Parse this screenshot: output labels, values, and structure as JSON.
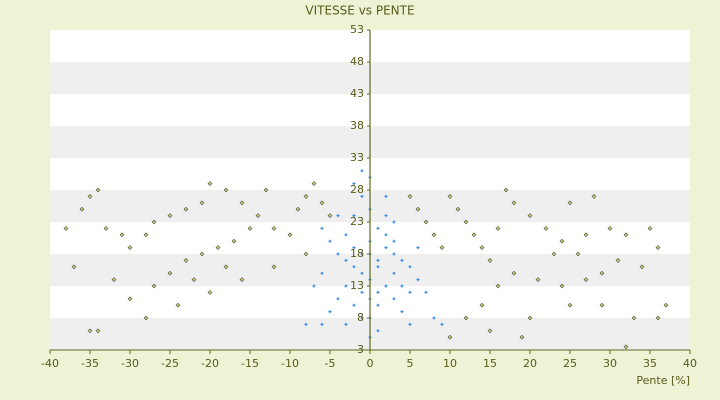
{
  "chart_data": {
    "type": "scatter",
    "title": "VITESSE vs PENTE",
    "x_label": "Pente [%]",
    "xlim": [
      -40,
      40
    ],
    "xticks": [
      -40,
      -35,
      -30,
      -25,
      -20,
      -15,
      -10,
      -5,
      0,
      5,
      10,
      15,
      20,
      25,
      30,
      35,
      40
    ],
    "ylim": [
      3,
      53
    ],
    "yticks": [
      3,
      8,
      13,
      18,
      23,
      28,
      33,
      38,
      43,
      48,
      53
    ],
    "grid": "banded",
    "series": [
      {
        "color": "#3a8ee6",
        "marker": "cross",
        "x": [
          -1,
          0,
          1,
          2,
          -2,
          3,
          -3,
          0,
          1,
          -1,
          2,
          4,
          -4,
          0,
          -1,
          1,
          0,
          -2,
          3,
          5,
          -5,
          6,
          -6,
          2,
          -2,
          0,
          -1,
          4,
          -3,
          1,
          -5,
          7,
          -7,
          8,
          -8,
          3,
          -3,
          2,
          -2,
          0,
          5,
          -4,
          6,
          -6,
          1,
          -1,
          0,
          2,
          -2,
          3,
          -4,
          9,
          -6,
          4,
          -1,
          1,
          0,
          -3,
          3,
          5
        ],
        "values": [
          18,
          20,
          17,
          19,
          16,
          15,
          21,
          14,
          22,
          12,
          13,
          17,
          18,
          25,
          27,
          10,
          8,
          10,
          11,
          16,
          20,
          14,
          15,
          24,
          24,
          30,
          31,
          9,
          7,
          6,
          9,
          12,
          13,
          8,
          7,
          20,
          13,
          27,
          29,
          5,
          7,
          11,
          19,
          22,
          16,
          15,
          18,
          21,
          19,
          23,
          24,
          7,
          7,
          13,
          8,
          12,
          11,
          17,
          18,
          12
        ]
      },
      {
        "color": "#c8c86a",
        "marker": "diamond",
        "x": [
          -35,
          -34,
          -36,
          -38,
          -33,
          -31,
          -30,
          -28,
          -27,
          -25,
          -23,
          -21,
          -20,
          -18,
          -16,
          -14,
          -12,
          -10,
          -9,
          -8,
          -7,
          -6,
          -5,
          -13,
          -15,
          -17,
          -19,
          -21,
          -23,
          -25,
          -27,
          -30,
          -35,
          -34,
          -28,
          -24,
          -20,
          -16,
          -12,
          -8,
          -37,
          -32,
          -22,
          -18,
          5,
          6,
          7,
          8,
          9,
          10,
          11,
          12,
          13,
          14,
          15,
          16,
          17,
          18,
          20,
          22,
          24,
          25,
          27,
          28,
          30,
          32,
          35,
          36,
          34,
          31,
          29,
          27,
          24,
          21,
          18,
          16,
          14,
          12,
          20,
          25,
          29,
          33,
          36,
          37,
          32,
          19,
          15,
          10,
          23,
          26
        ],
        "values": [
          27,
          28,
          25,
          22,
          22,
          21,
          19,
          21,
          23,
          24,
          25,
          26,
          29,
          28,
          26,
          24,
          22,
          21,
          25,
          27,
          29,
          26,
          24,
          28,
          22,
          20,
          19,
          18,
          17,
          15,
          13,
          11,
          6,
          6,
          8,
          10,
          12,
          14,
          16,
          18,
          16,
          14,
          14,
          16,
          27,
          25,
          23,
          21,
          19,
          27,
          25,
          23,
          21,
          19,
          17,
          22,
          28,
          26,
          24,
          22,
          20,
          26,
          21,
          27,
          22,
          21,
          22,
          19,
          16,
          17,
          15,
          14,
          13,
          14,
          15,
          13,
          10,
          8,
          8,
          10,
          10,
          8,
          8,
          10,
          3.5,
          5,
          6,
          5,
          18,
          18
        ]
      }
    ]
  }
}
